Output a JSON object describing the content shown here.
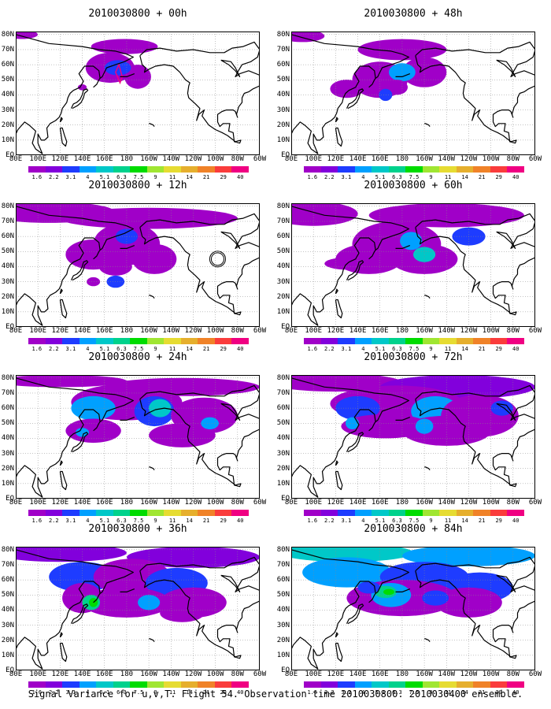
{
  "panels": [
    {
      "title": "2010030800 + 00h",
      "level": 0
    },
    {
      "title": "2010030800 + 48h",
      "level": 4
    },
    {
      "title": "2010030800 + 12h",
      "level": 1
    },
    {
      "title": "2010030800 + 60h",
      "level": 5
    },
    {
      "title": "2010030800 + 24h",
      "level": 2
    },
    {
      "title": "2010030800 + 72h",
      "level": 6
    },
    {
      "title": "2010030800 + 36h",
      "level": 3
    },
    {
      "title": "2010030800 + 84h",
      "level": 7
    }
  ],
  "lat_labels": [
    "80N",
    "70N",
    "60N",
    "50N",
    "40N",
    "30N",
    "20N",
    "10N",
    "EQ"
  ],
  "lon_labels": [
    "80E",
    "100E",
    "120E",
    "140E",
    "160E",
    "180",
    "160W",
    "140W",
    "120W",
    "100W",
    "80W",
    "60W"
  ],
  "colorbar": {
    "labels": [
      "1.6",
      "2.2",
      "3.1",
      "4",
      "5.1",
      "6.3",
      "7.5",
      "9",
      "11",
      "14",
      "21",
      "29",
      "40"
    ],
    "colors": [
      "#a000c8",
      "#8200dc",
      "#1e3cff",
      "#00a0ff",
      "#00c8c8",
      "#00d28c",
      "#00dc00",
      "#a0e632",
      "#e6dc32",
      "#e6af2d",
      "#f08228",
      "#fa3c3c",
      "#f00082"
    ]
  },
  "caption": "Signal Variance for u,v,T. Flight 54. Observation time 2010030800. 2010030400 ensemble."
}
